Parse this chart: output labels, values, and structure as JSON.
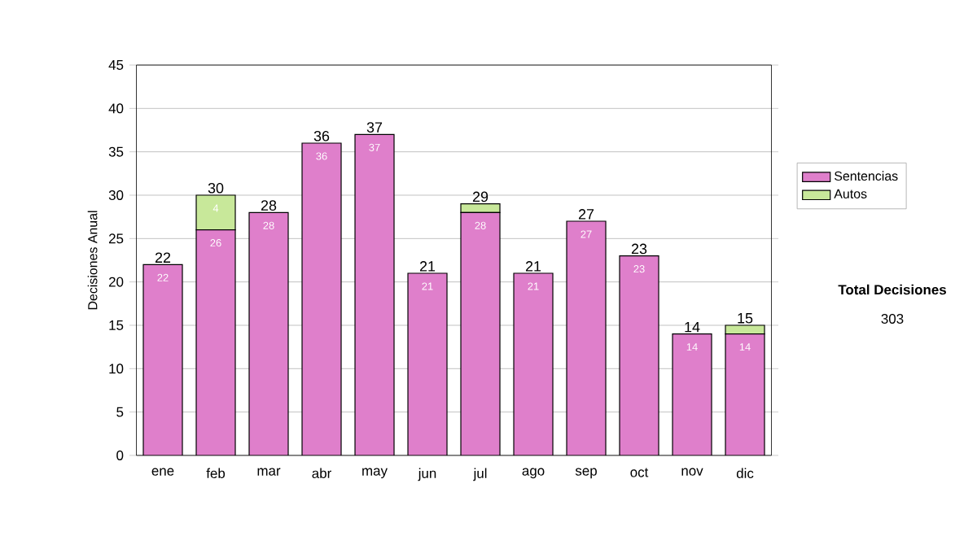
{
  "chart_data": {
    "type": "bar",
    "stacked": true,
    "ylabel": "Decisiones Anual",
    "categories": [
      "ene",
      "feb",
      "mar",
      "abr",
      "may",
      "jun",
      "jul",
      "ago",
      "sep",
      "oct",
      "nov",
      "dic"
    ],
    "series": [
      {
        "name": "Sentencias",
        "color": "#df7fcb",
        "values": [
          22,
          26,
          28,
          36,
          37,
          21,
          28,
          21,
          27,
          23,
          14,
          14
        ],
        "value_labels": [
          "22",
          "26",
          "28",
          "36",
          "37",
          "21",
          "28",
          "21",
          "27",
          "23",
          "14",
          "14"
        ]
      },
      {
        "name": "Autos",
        "color": "#c8e89a",
        "values": [
          0,
          4,
          0,
          0,
          0,
          0,
          1,
          0,
          0,
          0,
          0,
          1
        ],
        "value_labels": [
          null,
          "4",
          null,
          null,
          null,
          null,
          null,
          null,
          null,
          null,
          null,
          null
        ]
      }
    ],
    "totals": [
      "22",
      "30",
      "28",
      "36",
      "37",
      "21",
      "29",
      "21",
      "27",
      "23",
      "14",
      "15"
    ],
    "ylim": [
      0,
      45
    ],
    "yticks": [
      0,
      5,
      10,
      15,
      20,
      25,
      30,
      35,
      40,
      45
    ],
    "grid": "y",
    "legend": "right",
    "annotations": [
      "Total Decisiones",
      "303"
    ]
  }
}
